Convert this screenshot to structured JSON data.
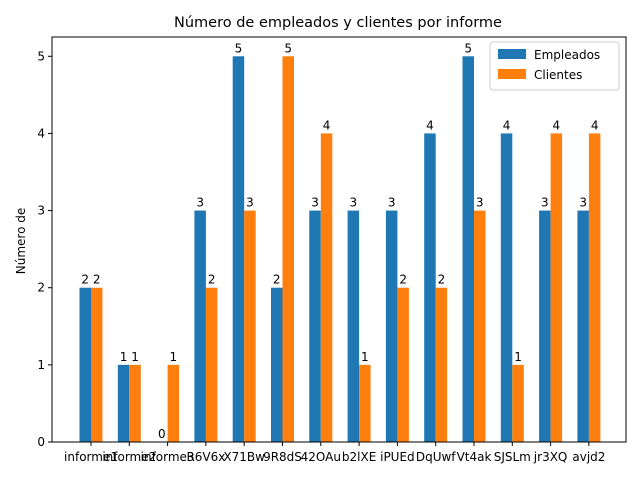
{
  "chart_data": {
    "type": "bar",
    "title": "Número de empleados y clientes por informe",
    "xlabel": "",
    "ylabel": "Número de",
    "ylim": [
      0,
      5.25
    ],
    "yticks": [
      0,
      1,
      2,
      3,
      4,
      5
    ],
    "grid": false,
    "legend_position": "top-right",
    "categories": [
      "informe1",
      "informe2",
      "informe3",
      "R6V6x",
      "X71Bw",
      "9R8dS",
      "42OAu",
      "b2lXE",
      "iPUEd",
      "DqUwf",
      "Vt4ak",
      "SJSLm",
      "jr3XQ",
      "avjd2"
    ],
    "series": [
      {
        "name": "Empleados",
        "color": "#1f77b4",
        "values": [
          2,
          1,
          0,
          3,
          5,
          2,
          3,
          3,
          3,
          4,
          5,
          4,
          3,
          3
        ]
      },
      {
        "name": "Clientes",
        "color": "#ff7f0e",
        "values": [
          2,
          1,
          1,
          2,
          3,
          5,
          4,
          1,
          2,
          2,
          3,
          1,
          4,
          4
        ]
      }
    ]
  }
}
